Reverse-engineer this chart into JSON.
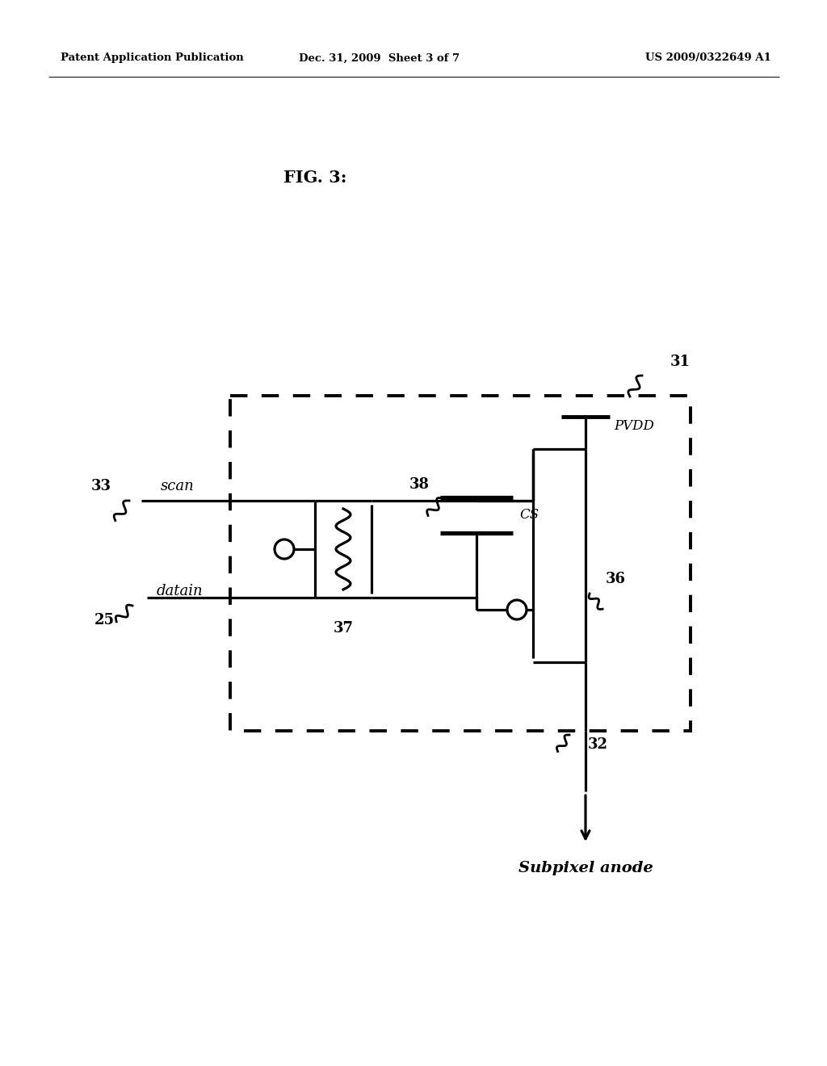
{
  "bg_color": "#ffffff",
  "header_left": "Patent Application Publication",
  "header_mid": "Dec. 31, 2009  Sheet 3 of 7",
  "header_right": "US 2009/0322649 A1",
  "fig_label": "FIG. 3:"
}
